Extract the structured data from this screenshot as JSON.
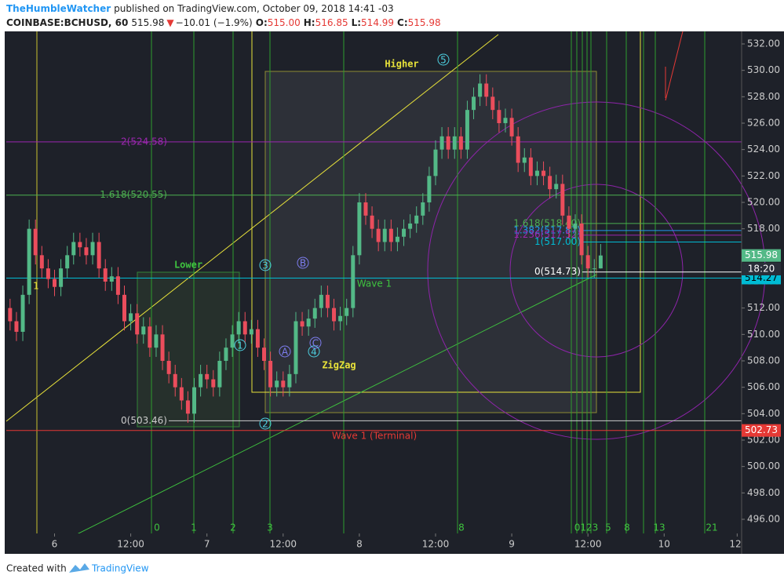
{
  "header": {
    "author": "TheHumbleWatcher",
    "published": "published on TradingView.com, October 09, 2018 14:41 -03",
    "symbol": "COINBASE:BCHUSD, 60",
    "last": "515.98",
    "arrow": "▼",
    "change": "−10.01 (−1.9%)",
    "o_key": "O:",
    "open": "515.00",
    "h_key": "H:",
    "high": "516.85",
    "l_key": "L:",
    "low": "514.99",
    "c_key": "C:",
    "close": "515.98"
  },
  "footer": {
    "created": "Created with",
    "brand": "TradingView"
  },
  "annotations": {
    "higher": "Higher",
    "lower": "Lower",
    "zigzag": "ZigZag",
    "wave1": "Wave 1",
    "terminal": "Wave 1 (Terminal)",
    "countdown": "18:20"
  },
  "wave_labels": [
    "1",
    "2",
    "3",
    "4",
    "5",
    "A",
    "B",
    "C",
    "1"
  ],
  "time_zones": [
    "0",
    "1",
    "2",
    "3",
    "8",
    "0123",
    "5",
    "8",
    "13",
    "21"
  ],
  "chart_data": {
    "type": "candlestick",
    "up_color": "#53b987",
    "down_color": "#eb4d5c",
    "x": [
      -7,
      -6,
      -5,
      -4,
      -3,
      -2,
      -1,
      0,
      1,
      2,
      3,
      4,
      5,
      6,
      7,
      8,
      9,
      10,
      11,
      12,
      13,
      14,
      15,
      16,
      17,
      18,
      19,
      20,
      21,
      22,
      23,
      24,
      25,
      26,
      27,
      28,
      29,
      30,
      31,
      32,
      33,
      34,
      35,
      36,
      37,
      38,
      39,
      40,
      41,
      42,
      43,
      44,
      45,
      46,
      47,
      48,
      49,
      50,
      51,
      52,
      53,
      54,
      55,
      56,
      57,
      58,
      59,
      60,
      61,
      62,
      63,
      64,
      65,
      66,
      67,
      68,
      69,
      70,
      71,
      72,
      73,
      74,
      75,
      76,
      77,
      78,
      79,
      80,
      81,
      82,
      83,
      84,
      85,
      86
    ],
    "open": [
      512,
      511,
      510.2,
      513,
      518,
      516,
      515,
      514.2,
      513.6,
      515,
      516,
      517,
      516.6,
      516,
      517,
      515,
      514,
      514.4,
      513,
      511,
      511.6,
      510,
      510.6,
      509,
      510,
      508,
      507,
      506,
      505,
      504,
      506,
      507,
      506.6,
      506,
      508,
      509,
      510,
      511,
      510,
      510.4,
      509,
      508,
      506,
      506.5,
      506,
      507,
      511,
      510.6,
      511.2,
      512,
      513,
      512,
      511,
      511.4,
      512,
      516,
      520,
      519,
      518,
      517,
      518,
      517,
      517.4,
      518,
      518.4,
      519,
      520,
      522,
      524,
      525,
      524,
      525,
      524,
      527,
      528,
      529,
      528,
      527,
      526,
      526.4,
      525,
      523,
      523.4,
      522,
      522.4,
      522,
      521,
      521.4,
      519,
      518,
      518.4,
      516,
      515,
      515
    ],
    "high": [
      512.7,
      511.7,
      513.7,
      518.7,
      518.7,
      516.7,
      515.7,
      514.9,
      515.7,
      516.7,
      517.7,
      517.7,
      517.3,
      517.7,
      517.7,
      515.7,
      515.1,
      515.1,
      513.7,
      512.3,
      512.3,
      511.3,
      511.3,
      510.7,
      510.7,
      508.7,
      507.7,
      506.7,
      505.7,
      506.7,
      507.7,
      507.7,
      507.3,
      508.7,
      509.7,
      510.7,
      511.7,
      511.7,
      511.1,
      511.1,
      509.7,
      508.7,
      507.2,
      507.2,
      507.7,
      511.7,
      511.7,
      511.9,
      512.7,
      513.7,
      513.7,
      512.7,
      512.1,
      512.7,
      516.7,
      520.7,
      520.7,
      519.7,
      518.7,
      518.7,
      518.7,
      518.1,
      518.7,
      519.1,
      519.7,
      520.7,
      522.7,
      524.7,
      525.7,
      525.7,
      525.7,
      525.7,
      527.7,
      528.7,
      529.7,
      529.7,
      528.7,
      527.7,
      527.1,
      527.1,
      525.7,
      524.1,
      524.1,
      523.1,
      523.1,
      522.7,
      522.1,
      522.1,
      519.7,
      519.1,
      519.1,
      516.7,
      515.7,
      516.85
    ],
    "low": [
      510.3,
      509.5,
      509.5,
      512.3,
      515.3,
      514.3,
      513.5,
      512.9,
      512.9,
      514.3,
      515.3,
      515.9,
      515.3,
      515.3,
      514.3,
      513.3,
      513.3,
      512.3,
      510.3,
      510.3,
      509.3,
      509.3,
      508.3,
      508.3,
      507.3,
      506.3,
      505.3,
      504.3,
      503.3,
      503.3,
      505.3,
      505.9,
      505.3,
      505.3,
      507.3,
      508.3,
      509.3,
      509.3,
      509.3,
      508.3,
      507.3,
      505.3,
      505.3,
      505.3,
      505.3,
      506.3,
      509.9,
      509.9,
      510.5,
      511.3,
      511.3,
      510.3,
      510.3,
      510.7,
      511.3,
      515.3,
      518.3,
      517.3,
      516.3,
      516.3,
      516.3,
      516.3,
      516.7,
      517.3,
      517.7,
      518.3,
      519.3,
      521.3,
      523.3,
      523.3,
      523.3,
      523.3,
      523.3,
      526.3,
      527.3,
      527.3,
      526.3,
      525.3,
      525.3,
      524.3,
      522.3,
      522.3,
      521.3,
      521.3,
      521.3,
      520.3,
      520.3,
      518.3,
      517.3,
      517.3,
      515.3,
      514.3,
      514.3,
      514.99
    ],
    "close": [
      511,
      510.2,
      513,
      518,
      516,
      515,
      514.2,
      513.6,
      515,
      516,
      517,
      516.6,
      516,
      517,
      515,
      514,
      514.4,
      513,
      511,
      511.6,
      510,
      510.6,
      509,
      510,
      508,
      507,
      506,
      505,
      504,
      506,
      507,
      506.6,
      506,
      508,
      509,
      510,
      511,
      510,
      510.4,
      509,
      508,
      506,
      506.5,
      506,
      507,
      511,
      510.6,
      511.2,
      512,
      513,
      512,
      511,
      511.4,
      512,
      516,
      520,
      519,
      518,
      517,
      518,
      517,
      517.4,
      518,
      518.4,
      519,
      520,
      522,
      524,
      525,
      524,
      525,
      524,
      527,
      528,
      529,
      528,
      527,
      526,
      526.4,
      525,
      523,
      523.4,
      522,
      522.4,
      522,
      521,
      521.4,
      519,
      518,
      518.4,
      516,
      515,
      515,
      515.98
    ],
    "xlim": [
      -7.6,
      108.2
    ],
    "xticks": [
      {
        "value": 0,
        "label": "6"
      },
      {
        "value": 12,
        "label": "12:00"
      },
      {
        "value": 24,
        "label": "7"
      },
      {
        "value": 36,
        "label": "12:00"
      },
      {
        "value": 48,
        "label": "8"
      },
      {
        "value": 60,
        "label": "12:00"
      },
      {
        "value": 72,
        "label": "9"
      },
      {
        "value": 84,
        "label": "12:00"
      },
      {
        "value": 96,
        "label": "10"
      },
      {
        "value": 107.5,
        "label": "12"
      }
    ],
    "ylim": [
      494.93,
      532.95
    ],
    "yticks": [
      {
        "value": 496,
        "label": "496.00"
      },
      {
        "value": 498,
        "label": "498.00"
      },
      {
        "value": 500,
        "label": "500.00"
      },
      {
        "value": 502,
        "label": "502.00"
      },
      {
        "value": 504,
        "label": "504.00"
      },
      {
        "value": 506,
        "label": "506.00"
      },
      {
        "value": 508,
        "label": "508.00"
      },
      {
        "value": 510,
        "label": "510.00"
      },
      {
        "value": 512,
        "label": "512.00"
      },
      {
        "value": 514,
        "label": "514.00"
      },
      {
        "value": 516,
        "label": "516.00"
      },
      {
        "value": 518,
        "label": "518.00"
      },
      {
        "value": 520,
        "label": "520.00"
      },
      {
        "value": 522,
        "label": "522.00"
      },
      {
        "value": 524,
        "label": "524.00"
      },
      {
        "value": 526,
        "label": "526.00"
      },
      {
        "value": 528,
        "label": "528.00"
      },
      {
        "value": 530,
        "label": "530.00"
      },
      {
        "value": 532,
        "label": "532.00"
      }
    ],
    "levels": [
      {
        "value": 524.58,
        "label": "2(524.58)",
        "color": "#9c27b0"
      },
      {
        "value": 520.55,
        "label": "1.618(520.55)",
        "color": "#4caf50"
      },
      {
        "value": 503.46,
        "label": "0(503.46)",
        "color": "#cccccc"
      },
      {
        "value": 518.4,
        "label": "1.618(518.40)",
        "color": "#4caf50"
      },
      {
        "value": 517.87,
        "label": "1.382(517.87)",
        "color": "#2196f3"
      },
      {
        "value": 517.52,
        "label": "1.236(517.52)",
        "color": "#9c27b0"
      },
      {
        "value": 517.0,
        "label": "1(517.00)",
        "color": "#00bcd4"
      },
      {
        "value": 514.73,
        "label": "0(514.73)",
        "color": "#ffffff"
      }
    ],
    "lines": [
      {
        "value": 514.27,
        "color": "#00bcd4"
      },
      {
        "value": 502.73,
        "color": "#e53935"
      }
    ],
    "price_tags": [
      {
        "value": 515.98,
        "label": "515.98",
        "color": "#53b987"
      },
      {
        "value": 514.27,
        "label": "514.27",
        "color": "#00bcd4"
      },
      {
        "value": 502.73,
        "label": "502.73",
        "color": "#e53935"
      }
    ]
  }
}
